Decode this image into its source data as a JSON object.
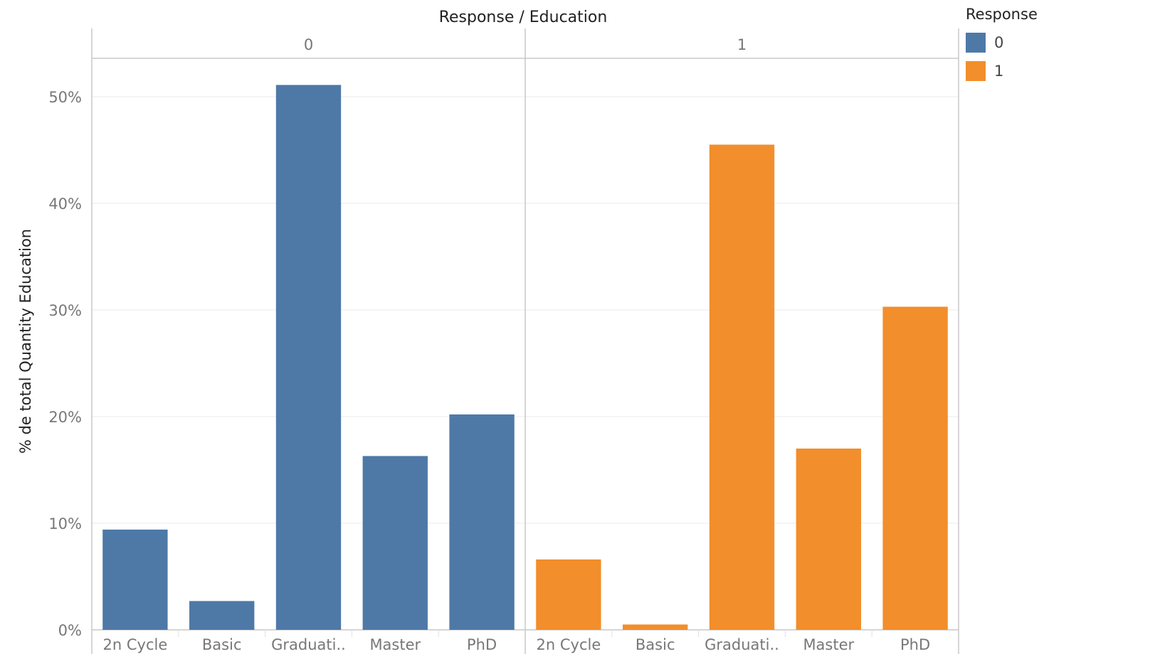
{
  "chart_data": {
    "type": "bar",
    "title": "Response / Education",
    "ylabel": "% de total Quantity Education",
    "xlabel": "",
    "ylim": [
      0,
      54
    ],
    "yticks": [
      0,
      10,
      20,
      30,
      40,
      50
    ],
    "ytick_labels": [
      "0%",
      "10%",
      "20%",
      "30%",
      "40%",
      "50%"
    ],
    "categories": [
      "2n Cycle",
      "Basic",
      "Graduati..",
      "Master",
      "PhD"
    ],
    "panels": [
      {
        "header": "0",
        "color": "#4e79a7",
        "values": [
          9.4,
          2.7,
          51.1,
          16.3,
          20.2
        ]
      },
      {
        "header": "1",
        "color": "#f28e2b",
        "values": [
          6.6,
          0.5,
          45.5,
          17.0,
          30.3
        ]
      }
    ],
    "legend": {
      "title": "Response",
      "items": [
        {
          "label": "0",
          "color": "#4e79a7"
        },
        {
          "label": "1",
          "color": "#f28e2b"
        }
      ]
    }
  }
}
